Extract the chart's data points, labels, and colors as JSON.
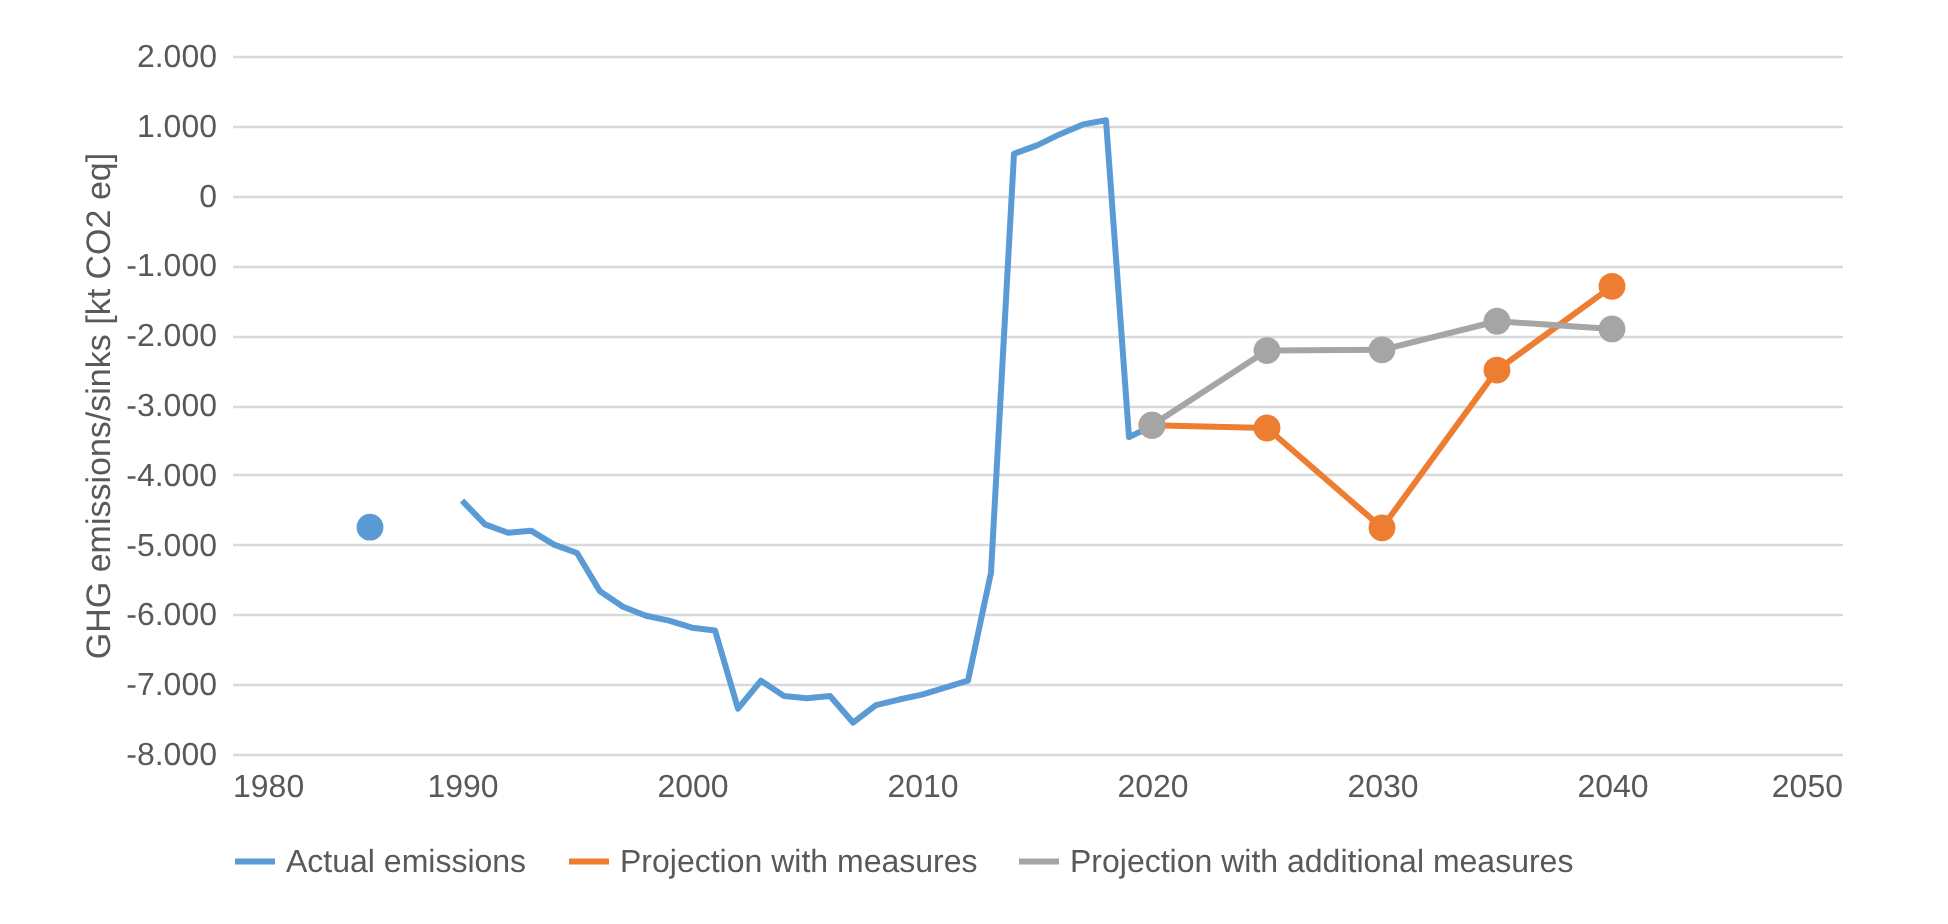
{
  "chart_data": {
    "type": "line",
    "ylabel": "GHG emissions/sinks [kt CO2 eq]",
    "series": [
      {
        "name": "Actual emissions",
        "color": "#5b9bd5",
        "marker": "none",
        "x": [
          1986,
          1987,
          1988,
          1989,
          1990,
          1991,
          1992,
          1993,
          1994,
          1995,
          1996,
          1997,
          1998,
          1999,
          2000,
          2001,
          2002,
          2003,
          2004,
          2005,
          2006,
          2007,
          2008,
          2009,
          2010,
          2011,
          2012,
          2013,
          2014,
          2015,
          2016,
          2017,
          2018,
          2019,
          2020
        ],
        "values": [
          -4750,
          null,
          null,
          null,
          -4370,
          -4710,
          -4830,
          -4800,
          -5000,
          -5120,
          -5670,
          -5890,
          -6020,
          -6090,
          -6190,
          -6230,
          -7350,
          -6950,
          -7170,
          -7200,
          -7170,
          -7550,
          -7300,
          -7220,
          -7150,
          -7050,
          -6950,
          -5400,
          600,
          720,
          880,
          1020,
          1080,
          -3460,
          -3300
        ]
      },
      {
        "name": "Projection with measures",
        "color": "#ed7d31",
        "marker": "circle",
        "x": [
          2020,
          2025,
          2030,
          2035,
          2040
        ],
        "values": [
          -3290,
          -3330,
          -4760,
          -2500,
          -1300
        ]
      },
      {
        "name": "Projection with additional measures",
        "color": "#a5a5a5",
        "marker": "circle",
        "x": [
          2020,
          2025,
          2030,
          2035,
          2040
        ],
        "values": [
          -3290,
          -2220,
          -2210,
          -1800,
          -1910
        ]
      }
    ],
    "xlim": [
      1980,
      2050
    ],
    "xticks": [
      1980,
      1990,
      2000,
      2010,
      2020,
      2030,
      2040,
      2050
    ],
    "ylim": [
      -8000,
      2000
    ],
    "yticks": [
      {
        "value": 2000,
        "label": "2.000"
      },
      {
        "value": 1000,
        "label": "1.000"
      },
      0,
      {
        "value": -1000,
        "label": "-1.000"
      },
      {
        "value": -2000,
        "label": "-2.000"
      },
      {
        "value": -3000,
        "label": "-3.000"
      },
      {
        "value": -4000,
        "label": "-4.000"
      },
      {
        "value": -5000,
        "label": "-5.000"
      },
      {
        "value": -6000,
        "label": "-6.000"
      },
      {
        "value": -7000,
        "label": "-7.000"
      },
      {
        "value": -8000,
        "label": "-8.000"
      }
    ],
    "grid": "y",
    "legend": "bottom",
    "line_style": "solid"
  }
}
